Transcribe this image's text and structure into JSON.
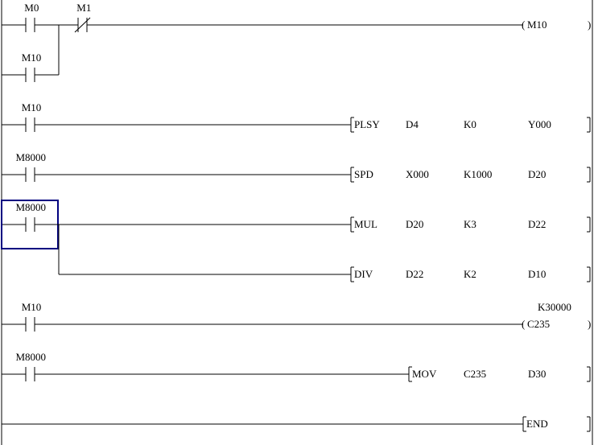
{
  "colors": {
    "line": "#000000",
    "cursor": "#000080",
    "background": "#ffffff"
  },
  "rungs": [
    {
      "contacts": [
        {
          "label": "M0",
          "type": "no"
        },
        {
          "label": "M1",
          "type": "nc"
        }
      ],
      "branch": [
        {
          "label": "M10",
          "type": "no"
        }
      ],
      "output": {
        "kind": "coil",
        "device": "M10"
      }
    },
    {
      "contacts": [
        {
          "label": "M10",
          "type": "no"
        }
      ],
      "output": {
        "kind": "instruction",
        "op": "PLSY",
        "args": [
          "D4",
          "K0",
          "Y000"
        ]
      }
    },
    {
      "contacts": [
        {
          "label": "M8000",
          "type": "no"
        }
      ],
      "output": {
        "kind": "instruction",
        "op": "SPD",
        "args": [
          "X000",
          "K1000",
          "D20"
        ]
      }
    },
    {
      "contacts": [
        {
          "label": "M8000",
          "type": "no",
          "selected": true
        }
      ],
      "output": {
        "kind": "instruction",
        "op": "MUL",
        "args": [
          "D20",
          "K3",
          "D22"
        ]
      },
      "branch_output": {
        "kind": "instruction",
        "op": "DIV",
        "args": [
          "D22",
          "K2",
          "D10"
        ]
      }
    },
    {
      "contacts": [
        {
          "label": "M10",
          "type": "no"
        }
      ],
      "output": {
        "kind": "coil",
        "device": "C235",
        "setpoint": "K30000"
      }
    },
    {
      "contacts": [
        {
          "label": "M8000",
          "type": "no"
        }
      ],
      "output": {
        "kind": "instruction",
        "op": "MOV",
        "args": [
          "C235",
          "D30"
        ]
      }
    },
    {
      "contacts": [],
      "output": {
        "kind": "instruction",
        "op": "END",
        "args": []
      }
    }
  ]
}
